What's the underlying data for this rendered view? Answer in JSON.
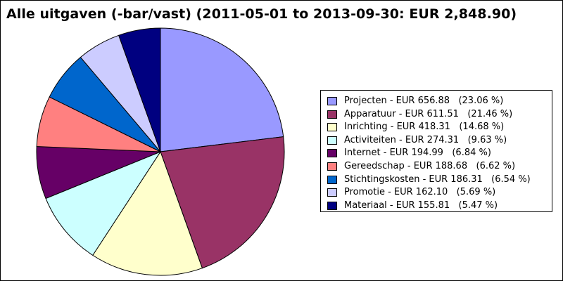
{
  "chart_data": {
    "type": "pie",
    "title": "Alle uitgaven (-bar/vast) (2011-05-01 to 2013-09-30: EUR 2,848.90)",
    "total": 2848.9,
    "currency": "EUR",
    "legend_position": "right",
    "slices": [
      {
        "label": "Projecten",
        "value": 656.88,
        "percent": 23.06,
        "color": "#9999ff",
        "legend": "Projecten - EUR 656.88   (23.06 %)"
      },
      {
        "label": "Apparatuur",
        "value": 611.51,
        "percent": 21.46,
        "color": "#993366",
        "legend": "Apparatuur - EUR 611.51   (21.46 %)"
      },
      {
        "label": "Inrichting",
        "value": 418.31,
        "percent": 14.68,
        "color": "#ffffcc",
        "legend": "Inrichting - EUR 418.31   (14.68 %)"
      },
      {
        "label": "Activiteiten",
        "value": 274.31,
        "percent": 9.63,
        "color": "#ccffff",
        "legend": "Activiteiten - EUR 274.31   (9.63 %)"
      },
      {
        "label": "Internet",
        "value": 194.99,
        "percent": 6.84,
        "color": "#660066",
        "legend": "Internet - EUR 194.99   (6.84 %)"
      },
      {
        "label": "Gereedschap",
        "value": 188.68,
        "percent": 6.62,
        "color": "#ff8080",
        "legend": "Gereedschap - EUR 188.68   (6.62 %)"
      },
      {
        "label": "Stichtingskosten",
        "value": 186.31,
        "percent": 6.54,
        "color": "#0066cc",
        "legend": "Stichtingskosten - EUR 186.31   (6.54 %)"
      },
      {
        "label": "Promotie",
        "value": 162.1,
        "percent": 5.69,
        "color": "#ccccff",
        "legend": "Promotie - EUR 162.10   (5.69 %)"
      },
      {
        "label": "Materiaal",
        "value": 155.81,
        "percent": 5.47,
        "color": "#000080",
        "legend": "Materiaal - EUR 155.81   (5.47 %)"
      }
    ]
  }
}
